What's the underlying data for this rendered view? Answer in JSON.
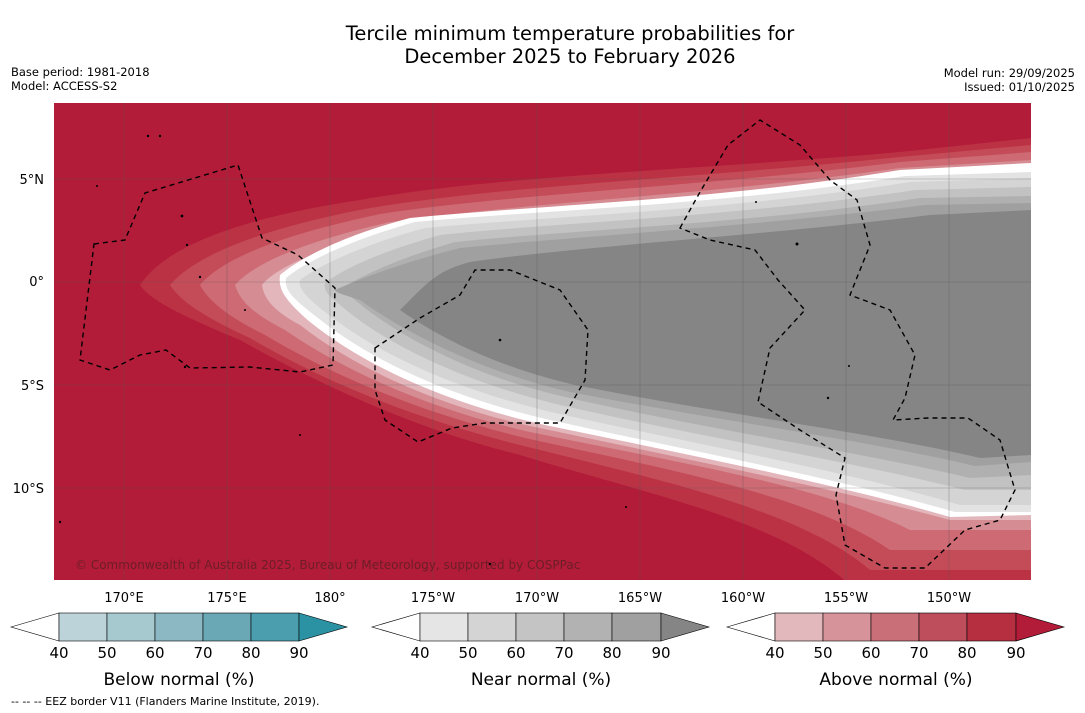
{
  "title_line1": "Tercile minimum temperature probabilities for",
  "title_line2": "December 2025 to February 2026",
  "base_period": "Base period: 1981-2018",
  "model": "Model: ACCESS-S2",
  "model_run": "Model run: 29/09/2025",
  "issued": "Issued: 01/10/2025",
  "credit": "© Commonwealth of Australia 2025, Bureau of Meteorology, supported by COSPPac",
  "footnote": "--  --  -- EEZ border V11 (Flanders Marine Institute, 2019).",
  "lat_labels": [
    "5°N",
    "0°",
    "5°S",
    "10°S"
  ],
  "lon_labels": [
    "170°E",
    "175°E",
    "180°",
    "175°W",
    "170°W",
    "165°W",
    "160°W",
    "155°W",
    "150°W"
  ],
  "colorbars": {
    "below": {
      "title": "Below normal (%)",
      "ticks": [
        "40",
        "50",
        "60",
        "70",
        "80",
        "90"
      ],
      "colors": [
        "#ffffff",
        "#bcd3da",
        "#a6c8cf",
        "#8bb8c2",
        "#6aa8b6",
        "#4a9eae",
        "#2b92a4"
      ]
    },
    "near": {
      "title": "Near normal (%)",
      "ticks": [
        "40",
        "50",
        "60",
        "70",
        "80",
        "90"
      ],
      "colors": [
        "#ffffff",
        "#e5e5e5",
        "#d4d4d4",
        "#c4c4c4",
        "#b2b2b2",
        "#a0a0a0",
        "#858585"
      ]
    },
    "above": {
      "title": "Above normal (%)",
      "ticks": [
        "40",
        "50",
        "60",
        "70",
        "80",
        "90"
      ],
      "colors": [
        "#ffffff",
        "#e2b8bd",
        "#d69399",
        "#c96f78",
        "#be4e5b",
        "#b62f41",
        "#b21c38"
      ]
    }
  },
  "map_colors": {
    "above_90": "#b21c38",
    "above_80": "#bc3245",
    "above_70": "#c44c58",
    "above_60": "#cd6a73",
    "above_50": "#d68c93",
    "above_40": "#e2b6bb",
    "near_40": "#e3e3e3",
    "near_50": "#d4d4d4",
    "near_60": "#c2c2c2",
    "near_70": "#b0b0b0",
    "near_80": "#a0a0a0",
    "near_90": "#858585"
  }
}
